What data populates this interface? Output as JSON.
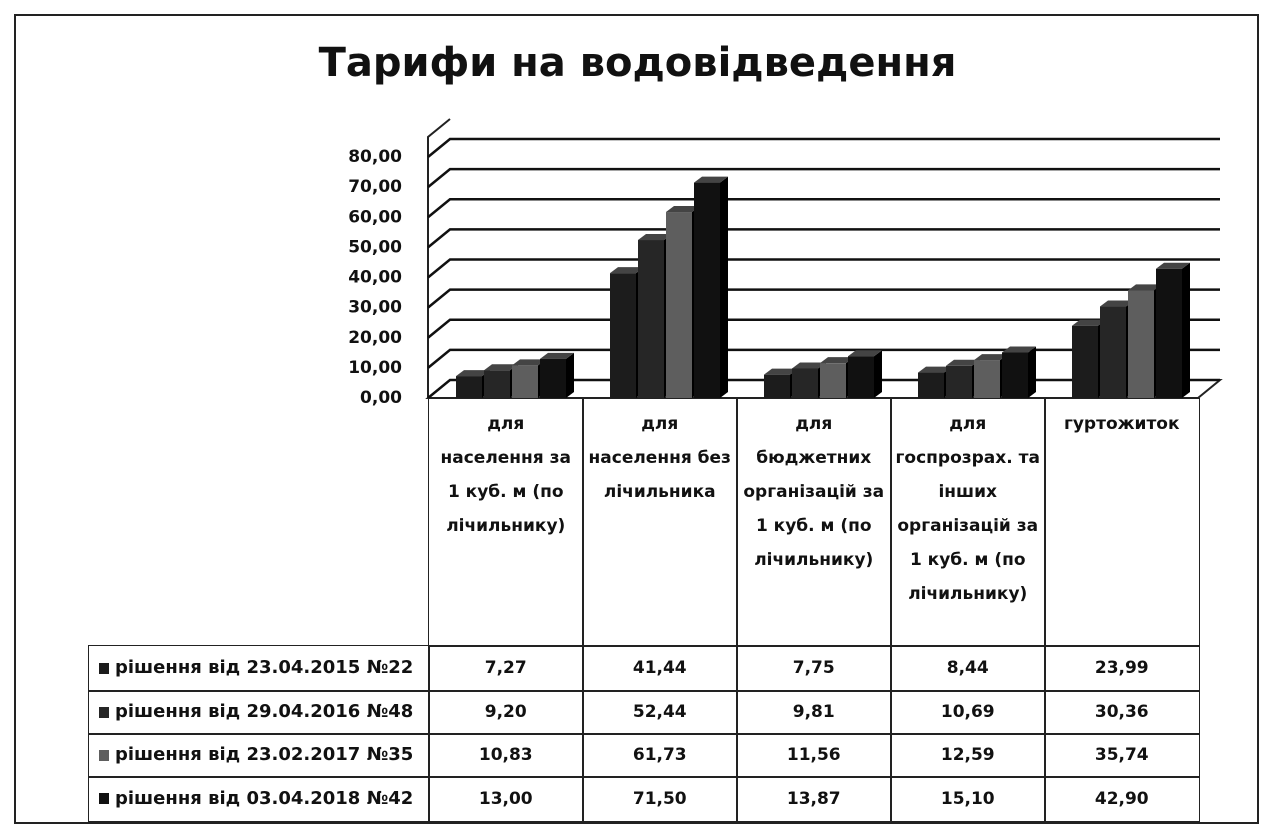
{
  "chart_data": {
    "type": "bar3d",
    "title": "Тарифи на водовідведення",
    "categories": [
      "для населення за 1 куб. м (по лічильнику)",
      "для населення без лічильника",
      "для бюджетних організацій за 1 куб. м (по лічильнику)",
      "для госпрозрах. та інших організацій за 1 куб. м (по лічильнику)",
      "гуртожиток"
    ],
    "series": [
      {
        "name": "рішення від 23.04.2015 №22",
        "color": "#1c1c1c",
        "values": [
          7.27,
          41.44,
          7.75,
          8.44,
          23.99
        ],
        "value_labels": [
          "7,27",
          "41,44",
          "7,75",
          "8,44",
          "23,99"
        ]
      },
      {
        "name": "рішення від 29.04.2016 №48",
        "color": "#262626",
        "values": [
          9.2,
          52.44,
          9.81,
          10.69,
          30.36
        ],
        "value_labels": [
          "9,20",
          "52,44",
          "9,81",
          "10,69",
          "30,36"
        ]
      },
      {
        "name": "рішення від 23.02.2017 №35",
        "color": "#5e5e5e",
        "values": [
          10.83,
          61.73,
          11.56,
          12.59,
          35.74
        ],
        "value_labels": [
          "10,83",
          "61,73",
          "11,56",
          "12,59",
          "35,74"
        ]
      },
      {
        "name": "рішення від 03.04.2018 №42",
        "color": "#111111",
        "values": [
          13.0,
          71.5,
          13.87,
          15.1,
          42.9
        ],
        "value_labels": [
          "13,00",
          "71,50",
          "13,87",
          "15,10",
          "42,90"
        ]
      }
    ],
    "ylim": [
      0,
      80
    ],
    "yticks": [
      {
        "value": 0,
        "label": "0,00"
      },
      {
        "value": 10,
        "label": "10,00"
      },
      {
        "value": 20,
        "label": "20,00"
      },
      {
        "value": 30,
        "label": "30,00"
      },
      {
        "value": 40,
        "label": "40,00"
      },
      {
        "value": 50,
        "label": "50,00"
      },
      {
        "value": 60,
        "label": "60,00"
      },
      {
        "value": 70,
        "label": "70,00"
      },
      {
        "value": 80,
        "label": "80,00"
      }
    ],
    "grid": true
  }
}
